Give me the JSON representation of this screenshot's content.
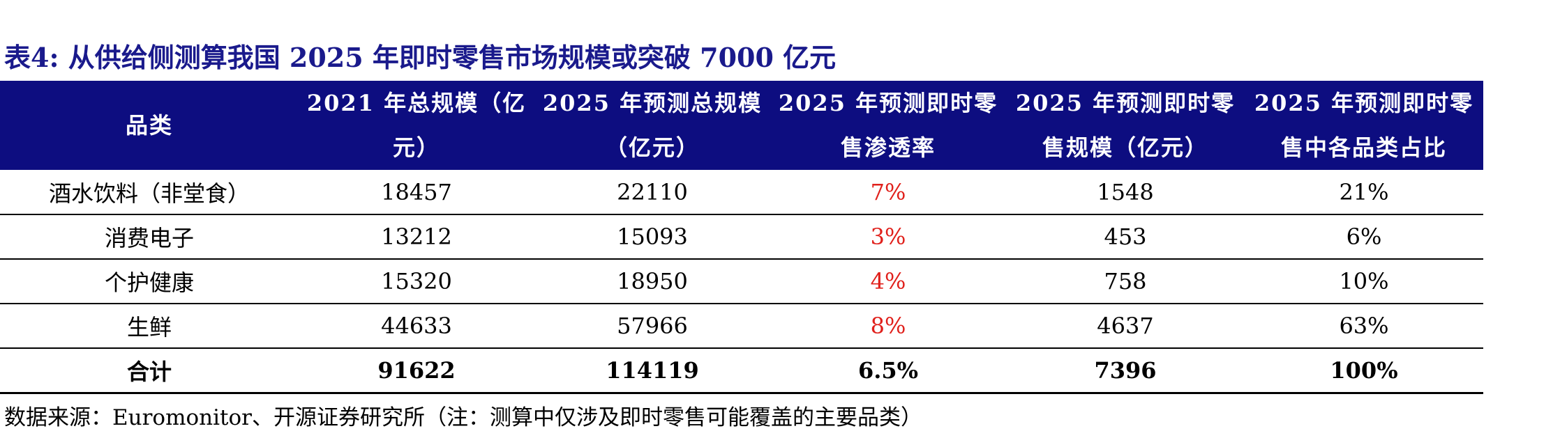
{
  "title": "表4:  从供给侧测算我国 2025 年即时零售市场规模或突破 7000 亿元",
  "table": {
    "headers": [
      "品类",
      "2021 年总规模（亿元）",
      "2025 年预测总规模（亿元）",
      "2025 年预测即时零售渗透率",
      "2025 年预测即时零售规模（亿元）",
      "2025 年预测即时零售中各品类占比"
    ],
    "rows": [
      [
        "酒水饮料（非堂食）",
        "18457",
        "22110",
        "7%",
        "1548",
        "21%"
      ],
      [
        "消费电子",
        "13212",
        "15093",
        "3%",
        "453",
        "6%"
      ],
      [
        "个护健康",
        "15320",
        "18950",
        "4%",
        "758",
        "10%"
      ],
      [
        "生鲜",
        "44633",
        "57966",
        "8%",
        "4637",
        "63%"
      ]
    ],
    "total": [
      "合计",
      "91622",
      "114119",
      "6.5%",
      "7396",
      "100%"
    ]
  },
  "source": "数据来源：Euromonitor、开源证券研究所（注：测算中仅涉及即时零售可能覆盖的主要品类）",
  "colors": {
    "title": "#1a1a8c",
    "header_bg": "#0d0d80",
    "header_text": "#ffffff",
    "highlight": "#e0201b"
  }
}
